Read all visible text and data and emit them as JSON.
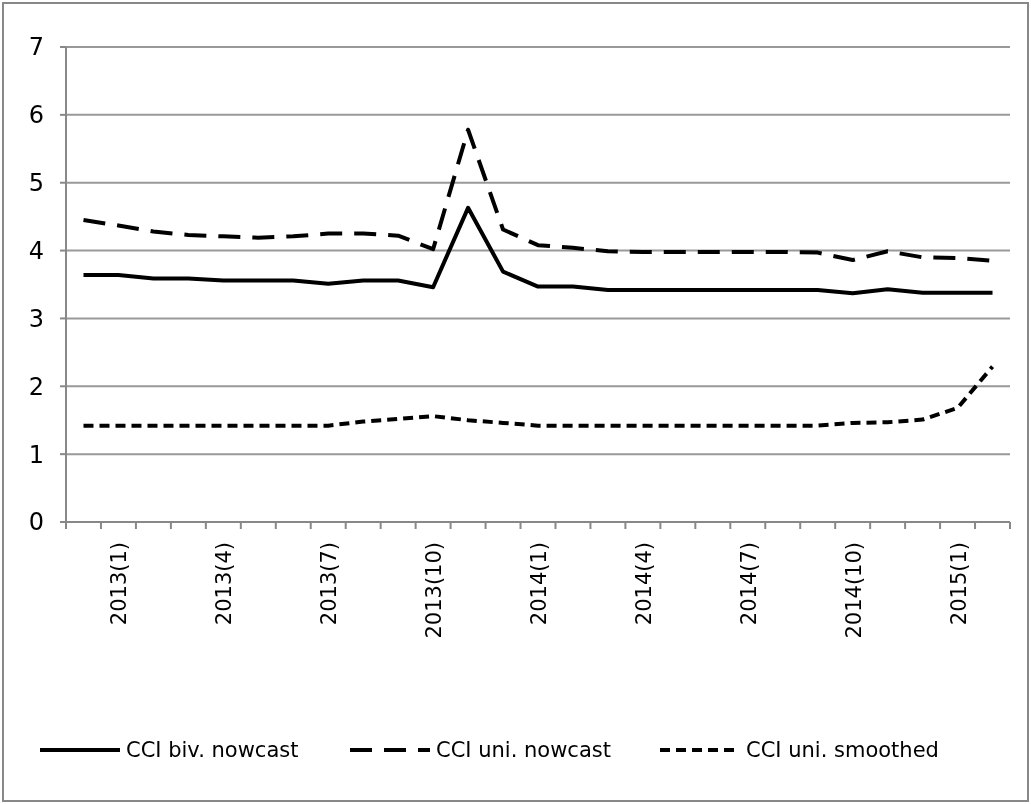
{
  "chart_data": {
    "type": "line",
    "categories": [
      null,
      "2013(1)",
      null,
      null,
      "2013(4)",
      null,
      null,
      "2013(7)",
      null,
      null,
      "2013(10)",
      null,
      null,
      "2014(1)",
      null,
      null,
      "2014(4)",
      null,
      null,
      "2014(7)",
      null,
      null,
      "2014(10)",
      null,
      null,
      "2015(1)",
      null
    ],
    "series": [
      {
        "name": "CCI biv. nowcast",
        "color": "#000000",
        "line_style": "solid",
        "values": [
          3.64,
          3.64,
          3.59,
          3.59,
          3.56,
          3.56,
          3.56,
          3.51,
          3.56,
          3.56,
          3.46,
          4.63,
          3.69,
          3.47,
          3.47,
          3.42,
          3.42,
          3.42,
          3.42,
          3.42,
          3.42,
          3.42,
          3.37,
          3.43,
          3.38,
          3.38,
          3.38
        ]
      },
      {
        "name": "CCI uni. nowcast",
        "color": "#000000",
        "line_style": "dashed",
        "values": [
          4.45,
          4.37,
          4.28,
          4.23,
          4.21,
          4.19,
          4.21,
          4.25,
          4.25,
          4.22,
          4.02,
          5.78,
          4.31,
          4.08,
          4.04,
          3.99,
          3.98,
          3.98,
          3.98,
          3.98,
          3.98,
          3.97,
          3.86,
          3.99,
          3.9,
          3.89,
          3.85
        ]
      },
      {
        "name": "CCI uni. smoothed",
        "color": "#000000",
        "line_style": "dotted",
        "values": [
          1.42,
          1.42,
          1.42,
          1.42,
          1.42,
          1.42,
          1.42,
          1.42,
          1.48,
          1.52,
          1.56,
          1.5,
          1.46,
          1.42,
          1.42,
          1.42,
          1.42,
          1.42,
          1.42,
          1.42,
          1.42,
          1.42,
          1.46,
          1.47,
          1.51,
          1.68,
          2.29
        ]
      }
    ],
    "ylim": [
      0,
      7
    ],
    "yticks": [
      0,
      1,
      2,
      3,
      4,
      5,
      6,
      7
    ],
    "grid": "y",
    "legend": "bottom",
    "marker": "none"
  }
}
